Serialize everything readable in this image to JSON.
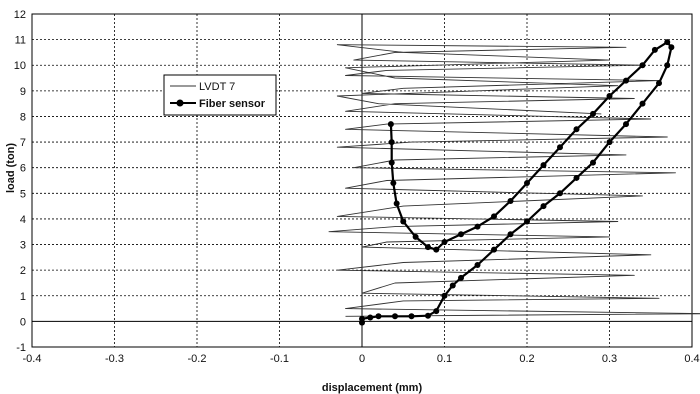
{
  "chart_data": {
    "type": "line",
    "title": "",
    "xlabel": "displacement (mm)",
    "ylabel": "load (ton)",
    "xlim": [
      -0.4,
      0.4
    ],
    "ylim": [
      -1,
      12
    ],
    "x_ticks": [
      "-0.4",
      "-0.3",
      "-0.2",
      "-0.1",
      "0",
      "0.1",
      "0.2",
      "0.3",
      "0.4"
    ],
    "y_ticks": [
      "-1",
      "0",
      "1",
      "2",
      "3",
      "4",
      "5",
      "6",
      "7",
      "8",
      "9",
      "10",
      "11",
      "12"
    ],
    "grid": true,
    "legend_position": "upper-left",
    "series": [
      {
        "name": "LVDT 7",
        "color": "#333333",
        "style": "thin-line",
        "x": [
          -0.02,
          0.42,
          -0.02,
          0.05,
          0.36,
          0.0,
          0.04,
          0.33,
          -0.03,
          0.05,
          0.35,
          0.0,
          0.03,
          0.3,
          -0.04,
          0.04,
          0.31,
          -0.03,
          0.05,
          0.34,
          -0.02,
          0.03,
          0.38,
          -0.01,
          0.04,
          0.32,
          -0.03,
          0.06,
          0.37,
          -0.02,
          0.03,
          0.35,
          -0.02,
          0.04,
          0.33,
          0.0,
          0.05,
          0.36,
          -0.02,
          0.03,
          0.34,
          -0.01,
          0.04,
          0.32,
          -0.03,
          0.05,
          0.3,
          -0.02,
          0.04,
          0.31,
          -0.03,
          0.02,
          0.29
        ],
        "y": [
          0.2,
          0.3,
          0.5,
          0.8,
          0.9,
          1.1,
          1.5,
          1.8,
          2.0,
          2.3,
          2.6,
          2.9,
          3.1,
          3.3,
          3.5,
          3.7,
          3.9,
          4.1,
          4.5,
          4.9,
          5.2,
          5.5,
          5.8,
          6.0,
          6.3,
          6.5,
          6.8,
          7.0,
          7.2,
          7.5,
          7.7,
          7.9,
          8.2,
          8.5,
          8.7,
          8.9,
          9.1,
          9.4,
          9.6,
          9.8,
          10.0,
          10.2,
          10.5,
          10.7,
          10.8,
          10.5,
          10.2,
          9.9,
          9.5,
          9.2,
          8.8,
          8.5,
          8.1
        ]
      },
      {
        "name": "Fiber sensor",
        "color": "#000000",
        "style": "line-with-markers",
        "x": [
          0.0,
          0.0,
          0.01,
          0.02,
          0.04,
          0.06,
          0.08,
          0.09,
          0.1,
          0.11,
          0.12,
          0.14,
          0.16,
          0.18,
          0.2,
          0.22,
          0.24,
          0.26,
          0.28,
          0.3,
          0.32,
          0.34,
          0.36,
          0.37,
          0.375,
          0.37,
          0.355,
          0.34,
          0.32,
          0.3,
          0.28,
          0.26,
          0.24,
          0.22,
          0.2,
          0.18,
          0.16,
          0.14,
          0.12,
          0.1,
          0.09,
          0.08,
          0.065,
          0.05,
          0.042,
          0.038,
          0.036,
          0.036,
          0.035
        ],
        "y": [
          -0.05,
          0.1,
          0.15,
          0.2,
          0.2,
          0.2,
          0.22,
          0.4,
          1.0,
          1.4,
          1.7,
          2.2,
          2.8,
          3.4,
          3.9,
          4.5,
          5.0,
          5.6,
          6.2,
          7.0,
          7.7,
          8.5,
          9.3,
          10.0,
          10.7,
          10.9,
          10.6,
          10.0,
          9.4,
          8.8,
          8.1,
          7.5,
          6.8,
          6.1,
          5.4,
          4.7,
          4.1,
          3.7,
          3.4,
          3.1,
          2.8,
          2.9,
          3.3,
          3.9,
          4.6,
          5.4,
          6.2,
          7.0,
          7.7
        ]
      }
    ]
  }
}
